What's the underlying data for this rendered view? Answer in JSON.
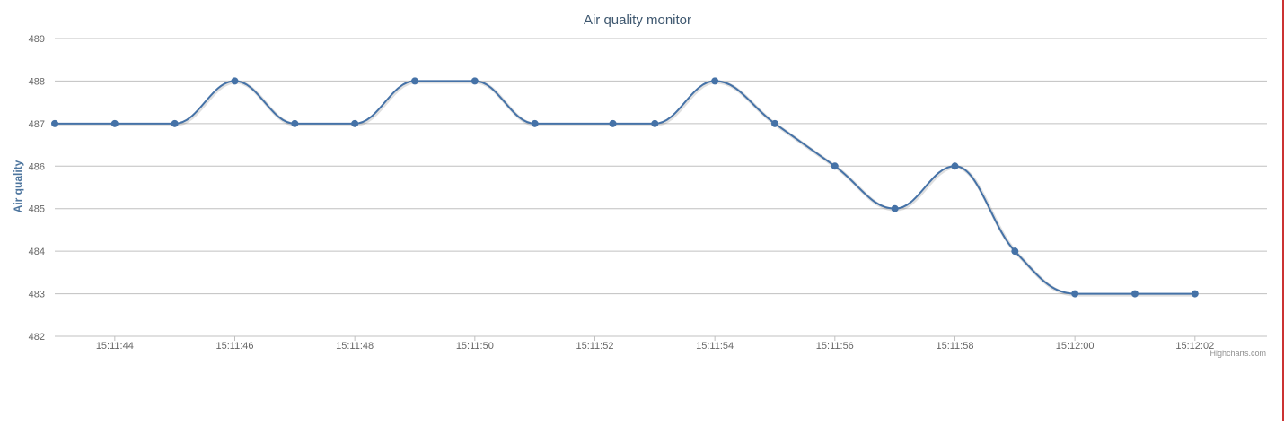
{
  "chart_data": {
    "type": "line",
    "title": "Air quality monitor",
    "ylabel": "Air quality",
    "xlabel": "",
    "ylim": [
      482,
      489
    ],
    "yticks": [
      482,
      483,
      484,
      485,
      486,
      487,
      488,
      489
    ],
    "xlim": [
      "15:11:43.0",
      "15:12:03.2"
    ],
    "xticks": [
      "15:11:44",
      "15:11:46",
      "15:11:48",
      "15:11:50",
      "15:11:52",
      "15:11:54",
      "15:11:56",
      "15:11:58",
      "15:12:00",
      "15:12:02"
    ],
    "grid": true,
    "legend": "none",
    "series": [
      {
        "color": "#4572a7",
        "x": [
          "15:11:43.0",
          "15:11:44.0",
          "15:11:45.0",
          "15:11:46.0",
          "15:11:47.0",
          "15:11:48.0",
          "15:11:49.0",
          "15:11:50.0",
          "15:11:51.0",
          "15:11:52.3",
          "15:11:53.0",
          "15:11:54.0",
          "15:11:55.0",
          "15:11:56.0",
          "15:11:57.0",
          "15:11:58.0",
          "15:11:59.0",
          "15:12:00.0",
          "15:12:01.0",
          "15:12:02.0"
        ],
        "values": [
          487,
          487,
          487,
          488,
          487,
          487,
          488,
          488,
          487,
          487,
          487,
          488,
          487,
          486,
          485,
          486,
          484,
          483,
          483,
          483
        ]
      }
    ]
  },
  "credits": "Highcharts.com",
  "colors": {
    "series": "#4572a7",
    "title": "#3e576f",
    "axis_title": "#4d759e",
    "grid": "#c0c0c0",
    "labels": "#666666"
  }
}
